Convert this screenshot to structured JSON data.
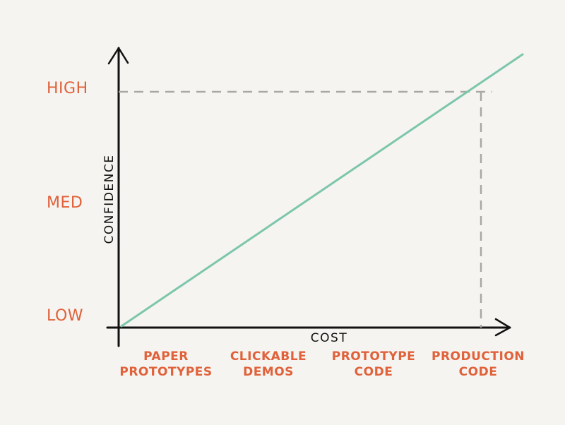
{
  "chart_data": {
    "type": "line",
    "xlabel": "COST",
    "ylabel": "CONFIDENCE",
    "x_categories": [
      [
        "PAPER",
        "PROTOTYPES"
      ],
      [
        "CLICKABLE",
        "DEMOS"
      ],
      [
        "PROTOTYPE",
        "CODE"
      ],
      [
        "PRODUCTION",
        "CODE"
      ]
    ],
    "y_categories": [
      "LOW",
      "MED",
      "HIGH"
    ],
    "series": [
      {
        "x": [
          0,
          4.4
        ],
        "y": [
          0,
          1.15
        ]
      }
    ],
    "reference_lines": [
      {
        "x_category": "PRODUCTION CODE",
        "y_category": "HIGH"
      }
    ],
    "colors": {
      "axis": "#111111",
      "labels": "#e0613a",
      "trend": "#7cc6ac",
      "guide": "#a9a8a4",
      "background": "#f5f4f0"
    }
  }
}
